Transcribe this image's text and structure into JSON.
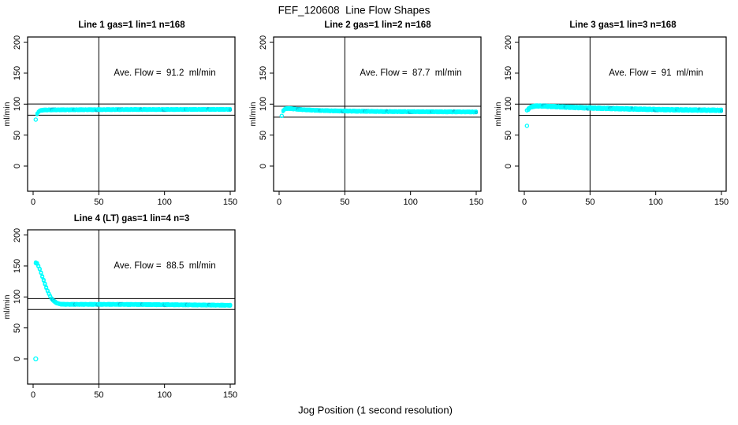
{
  "figure": {
    "title": "FEF_120608  Line Flow Shapes",
    "x_axis_label": "Jog Position (1 second resolution)",
    "point_color": "#00FFFF",
    "line_color": "#000000",
    "x_ticks": [
      0,
      50,
      100,
      150
    ],
    "y_ticks": [
      0,
      50,
      100,
      150,
      200
    ]
  },
  "chart_data": [
    {
      "type": "scatter",
      "title": "Line 1 gas=1 lin=1 n=168",
      "ave_flow_label": "Ave. Flow =  91.2  ml/min",
      "ave_flow": 91.2,
      "ylabel": "ml/min",
      "xlim": [
        -4,
        154
      ],
      "ylim": [
        -45,
        208
      ],
      "ref_lines_y": [
        100.3,
        82.1
      ],
      "ref_line_x": 50,
      "outliers": [
        [
          2,
          75
        ]
      ],
      "curve": [
        [
          3,
          84
        ],
        [
          4,
          87.5
        ],
        [
          5,
          89
        ],
        [
          6,
          90
        ],
        [
          8,
          90.5
        ],
        [
          12,
          90.7
        ],
        [
          20,
          90.8
        ],
        [
          40,
          91
        ],
        [
          60,
          91.2
        ],
        [
          80,
          91.3
        ],
        [
          100,
          91.3
        ],
        [
          120,
          91.4
        ],
        [
          150,
          91.5
        ]
      ],
      "band": {
        "x_start": 3,
        "x_end": 150,
        "spread": 1.3,
        "layers": 4
      },
      "marker_radius": 1.5
    },
    {
      "type": "scatter",
      "title": "Line 2 gas=1 lin=2 n=168",
      "ave_flow_label": "Ave. Flow =  87.7  ml/min",
      "ave_flow": 87.7,
      "ylabel": "ml/min",
      "xlim": [
        -4,
        154
      ],
      "ylim": [
        -45,
        208
      ],
      "ref_lines_y": [
        96.5,
        78.9
      ],
      "ref_line_x": 50,
      "outliers": [
        [
          2,
          81
        ]
      ],
      "curve": [
        [
          3,
          89
        ],
        [
          4,
          91.5
        ],
        [
          5,
          92.5
        ],
        [
          7,
          93
        ],
        [
          10,
          92.5
        ],
        [
          15,
          91.5
        ],
        [
          20,
          90.8
        ],
        [
          30,
          89.8
        ],
        [
          40,
          89.2
        ],
        [
          60,
          88.5
        ],
        [
          80,
          88
        ],
        [
          100,
          87.8
        ],
        [
          120,
          87.6
        ],
        [
          150,
          87.4
        ]
      ],
      "band": {
        "x_start": 3,
        "x_end": 150,
        "spread": 1.3,
        "layers": 4
      },
      "marker_radius": 1.5
    },
    {
      "type": "scatter",
      "title": "Line 3 gas=1 lin=3 n=168",
      "ave_flow_label": "Ave. Flow =  91  ml/min",
      "ave_flow": 91,
      "ylabel": "ml/min",
      "xlim": [
        -4,
        154
      ],
      "ylim": [
        -45,
        208
      ],
      "ref_lines_y": [
        100.1,
        81.9
      ],
      "ref_line_x": 50,
      "outliers": [
        [
          2,
          65
        ],
        [
          2,
          90
        ],
        [
          3,
          91
        ]
      ],
      "curve": [
        [
          3,
          92
        ],
        [
          4,
          94
        ],
        [
          6,
          96
        ],
        [
          8,
          96.8
        ],
        [
          10,
          97
        ],
        [
          15,
          96.8
        ],
        [
          20,
          96.3
        ],
        [
          30,
          95.3
        ],
        [
          40,
          94.5
        ],
        [
          50,
          93.8
        ],
        [
          60,
          93.2
        ],
        [
          80,
          92.2
        ],
        [
          100,
          91.3
        ],
        [
          120,
          90.7
        ],
        [
          150,
          90
        ]
      ],
      "band": {
        "x_start": 3,
        "x_end": 150,
        "spread": 1.8,
        "layers": 4
      },
      "marker_radius": 1.5
    },
    {
      "type": "scatter",
      "title": "Line 4 (LT) gas=1 lin=4 n=3",
      "ave_flow_label": "Ave. Flow =  88.5  ml/min",
      "ave_flow": 88.5,
      "ylabel": "ml/min",
      "xlim": [
        -4,
        154
      ],
      "ylim": [
        -45,
        208
      ],
      "ref_lines_y": [
        97.4,
        79.7
      ],
      "ref_line_x": 50,
      "outliers": [
        [
          2,
          0
        ]
      ],
      "curve": [
        [
          2,
          155
        ],
        [
          3,
          154
        ],
        [
          4,
          150
        ],
        [
          5,
          145
        ],
        [
          6,
          139
        ],
        [
          7,
          133
        ],
        [
          8,
          127
        ],
        [
          9,
          121
        ],
        [
          10,
          115
        ],
        [
          11,
          110
        ],
        [
          12,
          105
        ],
        [
          13,
          101
        ],
        [
          14,
          97.5
        ],
        [
          15,
          95
        ],
        [
          16,
          93
        ],
        [
          17,
          91.5
        ],
        [
          18,
          90.3
        ],
        [
          19,
          89.4
        ],
        [
          20,
          88.8
        ],
        [
          22,
          88.2
        ],
        [
          25,
          88
        ],
        [
          40,
          88
        ],
        [
          60,
          88
        ],
        [
          80,
          87.8
        ],
        [
          100,
          87.5
        ],
        [
          120,
          87.2
        ],
        [
          150,
          86.5
        ]
      ],
      "band": {
        "x_start": 2,
        "x_end": 150,
        "spread": 0.8,
        "layers": 3
      },
      "marker_radius": 1.9
    }
  ]
}
